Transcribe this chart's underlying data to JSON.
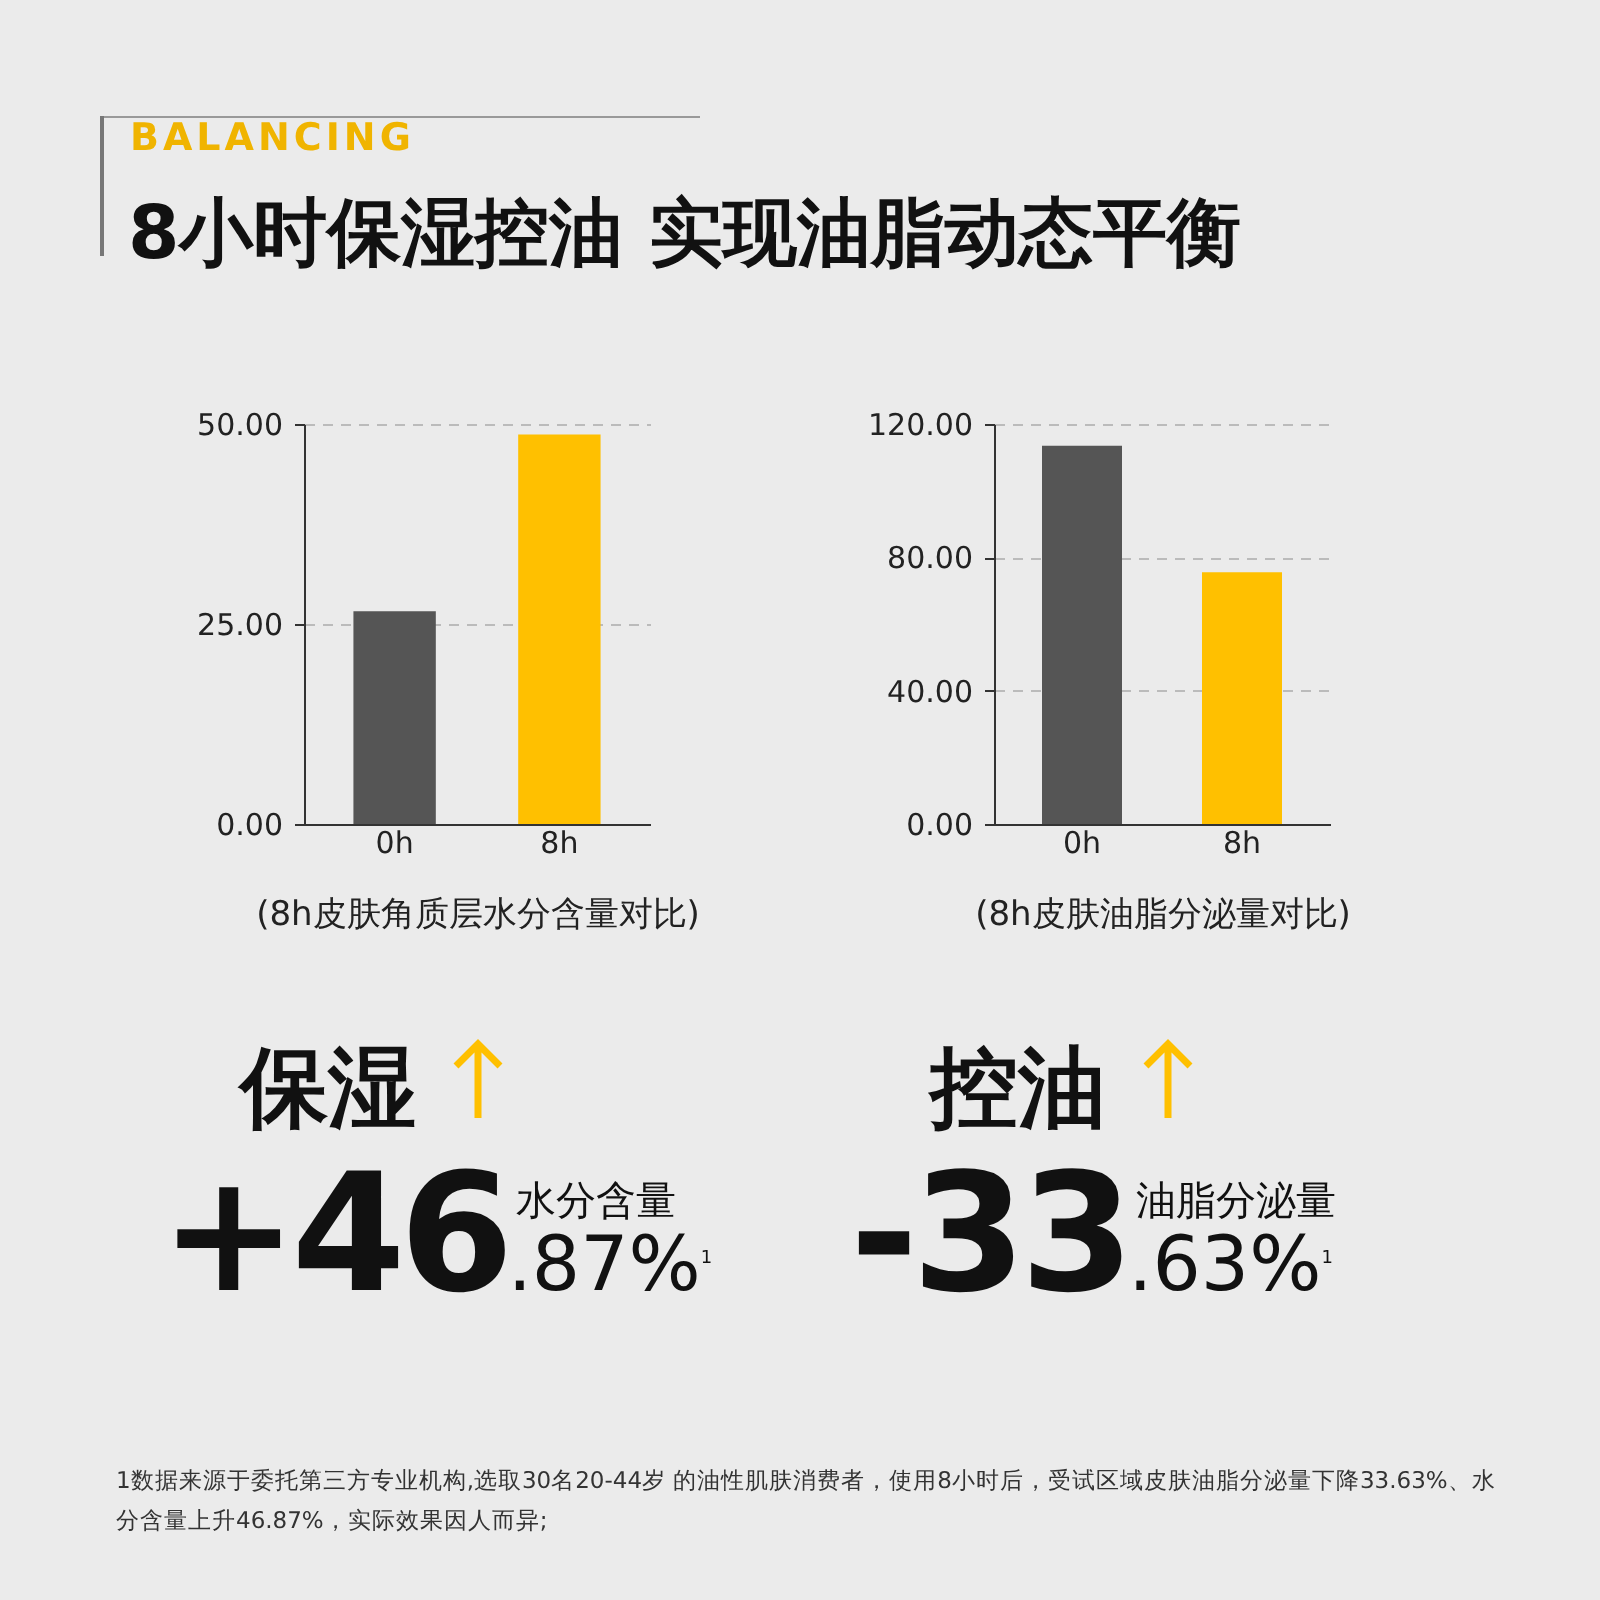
{
  "chart_data": [
    {
      "type": "bar",
      "xlabel": "(8h皮肤角质层水分含量对比)",
      "categories": [
        "0h",
        "8h"
      ],
      "values": [
        26.6,
        48.7
      ],
      "colors": [
        "#555555",
        "#ffc000"
      ],
      "ylim": [
        0,
        50
      ],
      "yticks": [
        {
          "value": 0,
          "label": "0.00"
        },
        {
          "value": 25,
          "label": "25.00"
        },
        {
          "value": 50,
          "label": "50.00"
        }
      ],
      "grid": "y",
      "annotations": [
        "BALANCING",
        "8小时保湿控油 实现油脂动态平衡",
        "保湿",
        "水分含量",
        "+46.87%$^{1}$"
      ]
    },
    {
      "type": "bar",
      "xlabel": "(8h皮肤油脂分泌量对比)",
      "categories": [
        "0h",
        "8h"
      ],
      "values": [
        113.5,
        75.5
      ],
      "colors": [
        "#555555",
        "#ffc000"
      ],
      "ylim": [
        0,
        120
      ],
      "yticks": [
        {
          "value": 0,
          "label": "0.00"
        },
        {
          "value": 40,
          "label": "40.00"
        },
        {
          "value": 80,
          "label": "80.00"
        },
        {
          "value": 120,
          "label": "120.00"
        }
      ],
      "grid": "y",
      "annotations": [
        "控油",
        "油脂分泌量",
        "-33.63%$^{1}$",
        "1数据来源于委托第三方专业机构,选取30名20-44岁 的油性肌肤消费者，使用8小时后，受试区域皮肤油脂分泌量下降33.63%、水分含量上升46.87%，实际效果因人而异;"
      ]
    }
  ]
}
